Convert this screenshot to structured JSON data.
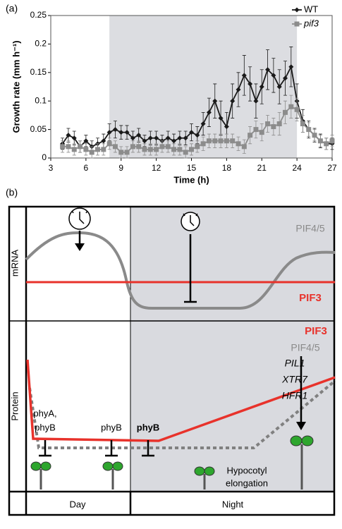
{
  "panel_labels": [
    "(a)",
    "(b)"
  ],
  "chart_data": {
    "type": "line",
    "x_label": "Time (h)",
    "y_label": "Growth  rate (mm h⁻¹)",
    "x": [
      4,
      4.5,
      5,
      5.5,
      6,
      6.5,
      7,
      7.5,
      8,
      8.5,
      9,
      9.5,
      10,
      10.5,
      11,
      11.5,
      12,
      12.5,
      13,
      13.5,
      14,
      14.5,
      15,
      15.5,
      16,
      16.5,
      17,
      17.5,
      18,
      18.5,
      19,
      19.5,
      20,
      20.5,
      21,
      21.5,
      22,
      22.5,
      23,
      23.5,
      24,
      24.5,
      25,
      25.5,
      26,
      26.5,
      27
    ],
    "series": [
      {
        "name": "WT",
        "color": "#1a1a1a",
        "marker": "diamond",
        "values": [
          0.025,
          0.04,
          0.035,
          0.02,
          0.03,
          0.02,
          0.025,
          0.03,
          0.045,
          0.05,
          0.045,
          0.045,
          0.035,
          0.04,
          0.03,
          0.035,
          0.035,
          0.03,
          0.035,
          0.03,
          0.035,
          0.035,
          0.045,
          0.04,
          0.06,
          0.08,
          0.1,
          0.07,
          0.055,
          0.1,
          0.12,
          0.145,
          0.13,
          0.1,
          0.125,
          0.155,
          0.145,
          0.125,
          0.14,
          0.16,
          0.1,
          0.065,
          0.05,
          0.04,
          0.03,
          0.025,
          0.025
        ],
        "errors": [
          0.01,
          0.012,
          0.012,
          0.01,
          0.01,
          0.01,
          0.01,
          0.012,
          0.015,
          0.015,
          0.012,
          0.012,
          0.012,
          0.012,
          0.01,
          0.012,
          0.012,
          0.01,
          0.012,
          0.012,
          0.012,
          0.012,
          0.015,
          0.015,
          0.02,
          0.025,
          0.03,
          0.03,
          0.025,
          0.03,
          0.03,
          0.035,
          0.03,
          0.03,
          0.03,
          0.035,
          0.03,
          0.03,
          0.03,
          0.035,
          0.03,
          0.02,
          0.015,
          0.012,
          0.012,
          0.01,
          0.01
        ]
      },
      {
        "name": "pif3",
        "color": "#8c8c8c",
        "marker": "square",
        "values": [
          0.02,
          0.02,
          0.015,
          0.02,
          0.015,
          0.01,
          0.015,
          0.015,
          0.025,
          0.02,
          0.01,
          0.01,
          0.02,
          0.02,
          0.015,
          0.015,
          0.015,
          0.02,
          0.02,
          0.015,
          0.015,
          0.01,
          0.015,
          0.02,
          0.025,
          0.03,
          0.03,
          0.03,
          0.03,
          0.03,
          0.025,
          0.02,
          0.04,
          0.05,
          0.045,
          0.06,
          0.055,
          0.06,
          0.08,
          0.09,
          0.085,
          0.06,
          0.05,
          0.04,
          0.03,
          0.025,
          0.03
        ],
        "errors": [
          0.01,
          0.01,
          0.01,
          0.01,
          0.01,
          0.01,
          0.01,
          0.01,
          0.01,
          0.01,
          0.01,
          0.01,
          0.01,
          0.01,
          0.01,
          0.01,
          0.01,
          0.01,
          0.01,
          0.01,
          0.01,
          0.01,
          0.01,
          0.01,
          0.012,
          0.012,
          0.012,
          0.012,
          0.012,
          0.012,
          0.012,
          0.012,
          0.015,
          0.015,
          0.015,
          0.015,
          0.015,
          0.02,
          0.02,
          0.02,
          0.02,
          0.015,
          0.012,
          0.01,
          0.01,
          0.01,
          0.01
        ]
      }
    ],
    "xlim": [
      3,
      27
    ],
    "xticks": [
      3,
      6,
      9,
      12,
      15,
      18,
      21,
      24,
      27
    ],
    "ylim": [
      0,
      0.25
    ],
    "yticks": [
      0,
      0.05,
      0.1,
      0.15,
      0.2,
      0.25
    ],
    "shaded_x": [
      8,
      24
    ],
    "shade_color": "#dcdde1",
    "legend": "upper right",
    "grid": false
  },
  "diagram": {
    "rows": [
      "mRNA",
      "Protein"
    ],
    "columns": [
      "Day",
      "Night"
    ],
    "mrna_labels": {
      "pif45": "PIF4/5",
      "pif3": "PIF3"
    },
    "protein_labels": {
      "pif3": "PIF3",
      "pif45": "PIF4/5",
      "targets": [
        "PIL1",
        "XTR7",
        "HFR1"
      ],
      "phyA_phyB": [
        "phyA,",
        "phyB"
      ],
      "phyB_day": "phyB",
      "phyB_dusk": "phyB",
      "outcome": [
        "Hypocotyl",
        "elongation"
      ]
    }
  }
}
